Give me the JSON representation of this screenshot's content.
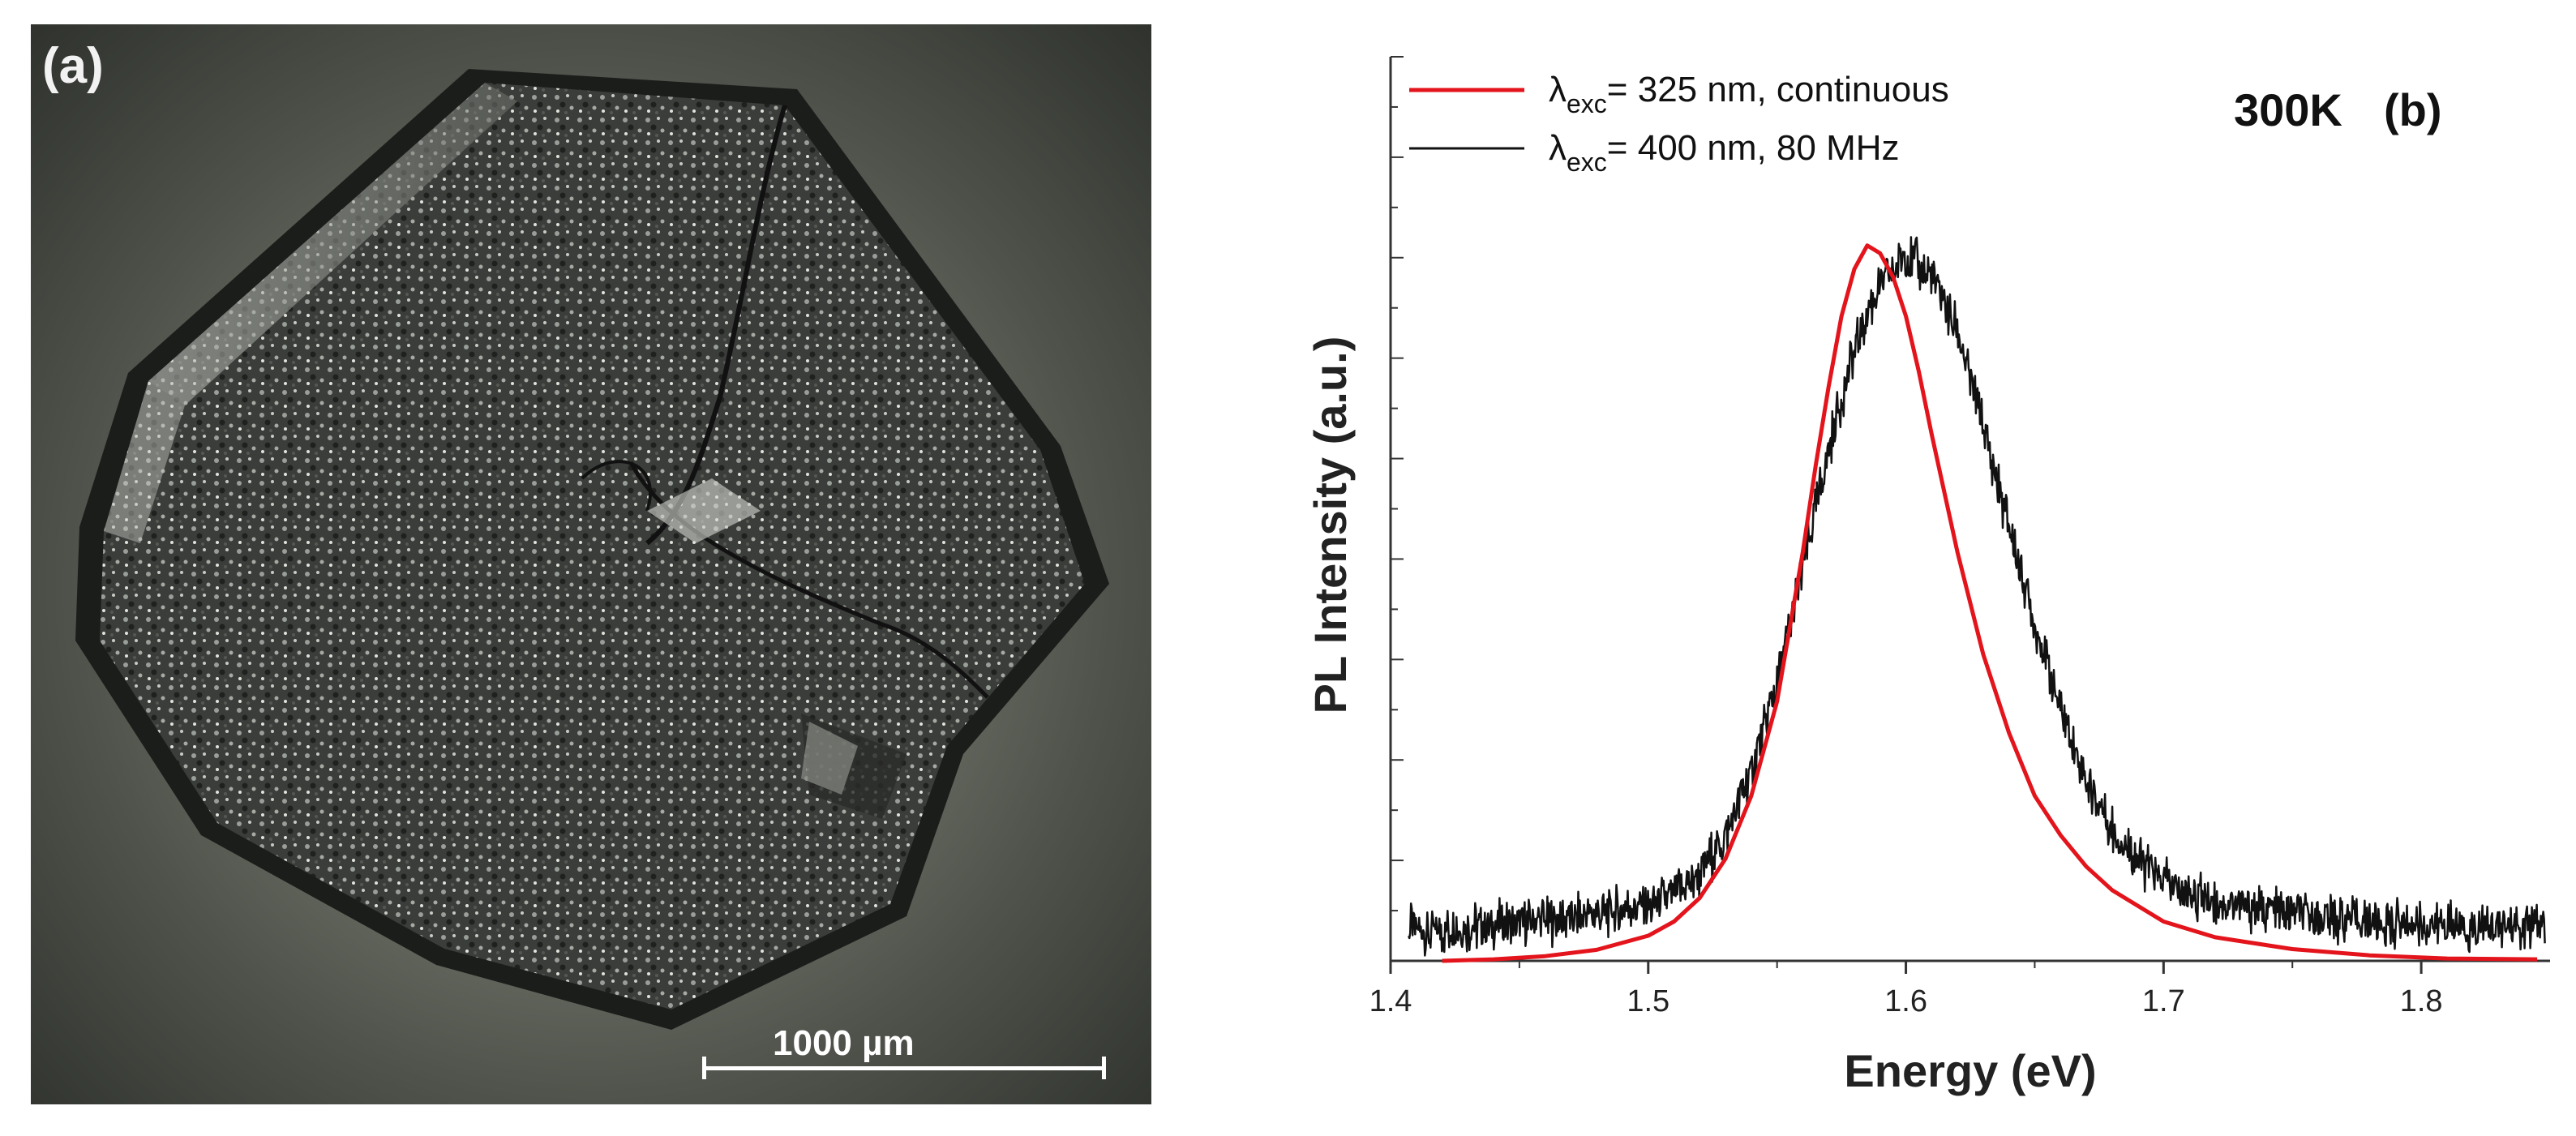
{
  "panel_a": {
    "label": "(a)",
    "scale_bar_text": "1000 µm"
  },
  "chart_data": {
    "type": "line",
    "panel_label": "(b)",
    "annotation": "300K",
    "xlabel": "Energy (eV)",
    "ylabel": "PL Intensity (a.u.)",
    "xlim": [
      1.4,
      1.85
    ],
    "ylim": [
      0,
      1.15
    ],
    "xticks": [
      "1.4",
      "1.5",
      "1.6",
      "1.7",
      "1.8"
    ],
    "grid": false,
    "legend_position": "top-left",
    "series": [
      {
        "legend_symbol": "λ",
        "legend_sub": "exc",
        "legend_rest": "=  325 nm, continuous",
        "color": "#e3141b",
        "x": [
          1.42,
          1.44,
          1.46,
          1.48,
          1.5,
          1.51,
          1.52,
          1.53,
          1.54,
          1.55,
          1.56,
          1.565,
          1.57,
          1.575,
          1.58,
          1.585,
          1.59,
          1.595,
          1.6,
          1.605,
          1.61,
          1.62,
          1.63,
          1.64,
          1.65,
          1.66,
          1.67,
          1.68,
          1.7,
          1.72,
          1.75,
          1.78,
          1.81,
          1.845
        ],
        "y": [
          0.0,
          0.002,
          0.006,
          0.014,
          0.032,
          0.05,
          0.08,
          0.13,
          0.21,
          0.33,
          0.52,
          0.63,
          0.73,
          0.82,
          0.88,
          0.91,
          0.9,
          0.87,
          0.82,
          0.75,
          0.67,
          0.52,
          0.39,
          0.29,
          0.21,
          0.16,
          0.12,
          0.09,
          0.05,
          0.03,
          0.015,
          0.007,
          0.003,
          0.002
        ]
      },
      {
        "legend_symbol": "λ",
        "legend_sub": "exc",
        "legend_rest": "= 400 nm, 80 MHz",
        "color": "#111111",
        "x": [
          1.407,
          1.42,
          1.44,
          1.46,
          1.48,
          1.5,
          1.51,
          1.52,
          1.53,
          1.54,
          1.55,
          1.56,
          1.57,
          1.58,
          1.59,
          1.6,
          1.61,
          1.62,
          1.63,
          1.64,
          1.65,
          1.66,
          1.67,
          1.68,
          1.69,
          1.7,
          1.72,
          1.75,
          1.78,
          1.81,
          1.848
        ],
        "y": [
          0.04,
          0.04,
          0.045,
          0.05,
          0.06,
          0.07,
          0.085,
          0.11,
          0.16,
          0.24,
          0.35,
          0.5,
          0.65,
          0.78,
          0.86,
          0.9,
          0.87,
          0.8,
          0.68,
          0.55,
          0.43,
          0.32,
          0.23,
          0.17,
          0.13,
          0.1,
          0.075,
          0.06,
          0.05,
          0.045,
          0.04
        ]
      }
    ]
  }
}
